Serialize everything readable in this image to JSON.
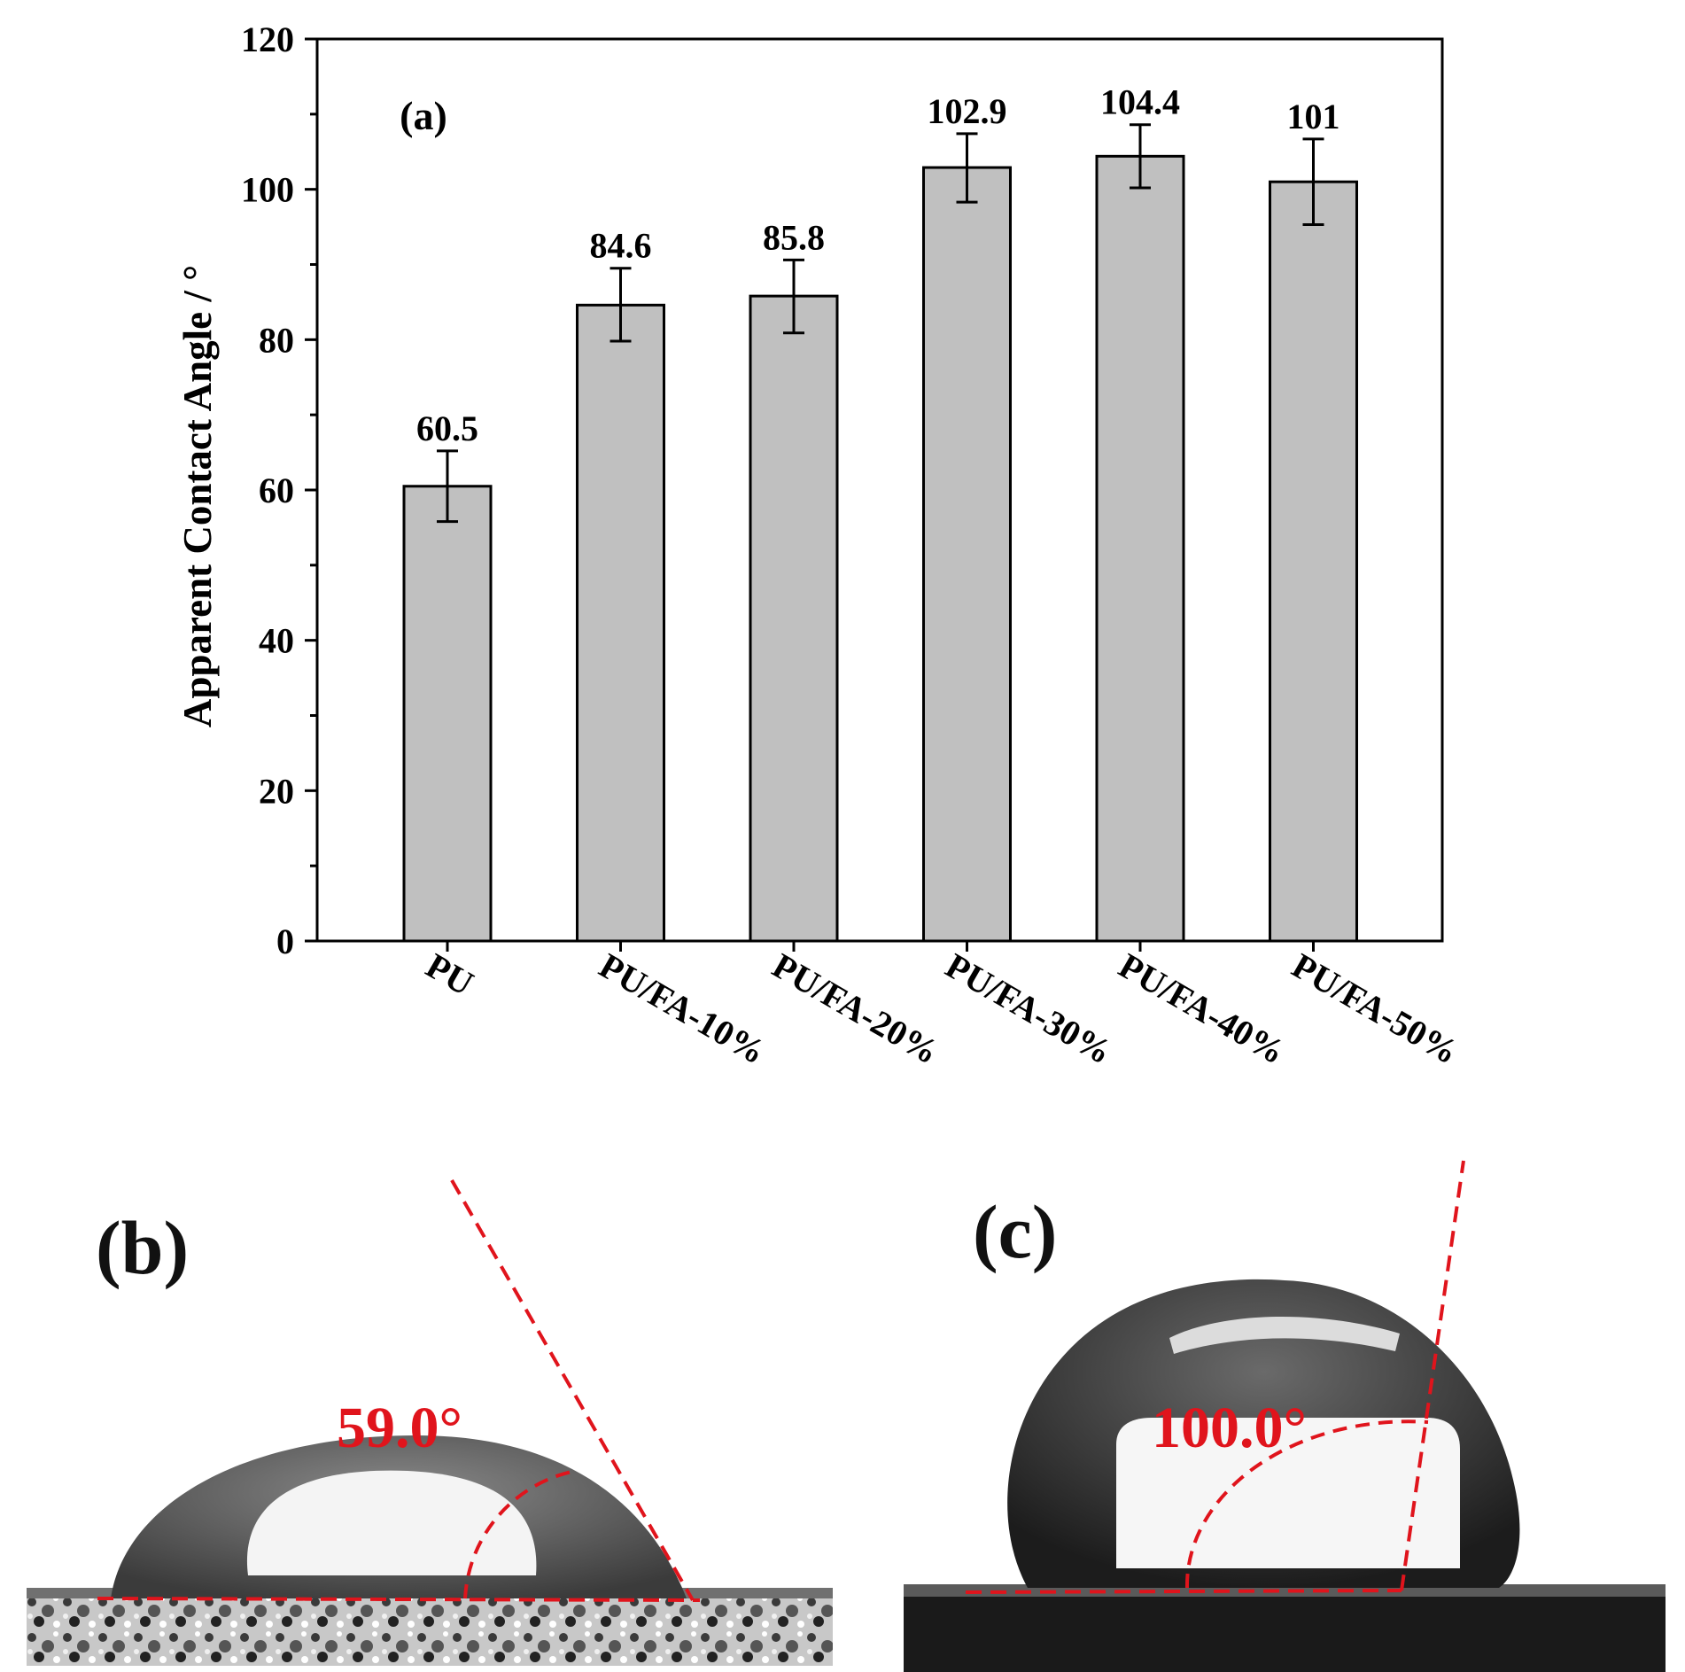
{
  "chart_data": {
    "type": "bar",
    "panel_label": "(a)",
    "title": "",
    "xlabel": "",
    "ylabel": "Apparent Contact Angle / °",
    "ylim": [
      0,
      120
    ],
    "yticks": [
      0,
      20,
      40,
      60,
      80,
      100,
      120
    ],
    "categories": [
      "PU",
      "PU/FA-10%",
      "PU/FA-20%",
      "PU/FA-30%",
      "PU/FA-40%",
      "PU/FA-50%"
    ],
    "values": [
      60.5,
      84.6,
      85.8,
      102.9,
      104.4,
      101
    ],
    "value_labels": [
      "60.5",
      "84.6",
      "85.8",
      "102.9",
      "104.4",
      "101"
    ],
    "error_low": [
      55.8,
      79.8,
      80.9,
      98.3,
      100.2,
      95.3
    ],
    "error_high": [
      65.2,
      89.5,
      90.6,
      107.4,
      108.6,
      106.7
    ],
    "bar_color": "#c0c0c0",
    "edge_color": "#000000",
    "grid": false,
    "legend": "none"
  },
  "photos": {
    "b": {
      "label": "(b)",
      "angle_label": "59.0°"
    },
    "c": {
      "label": "(c)",
      "angle_label": "100.0°"
    },
    "guide_color": "#e0141c"
  }
}
